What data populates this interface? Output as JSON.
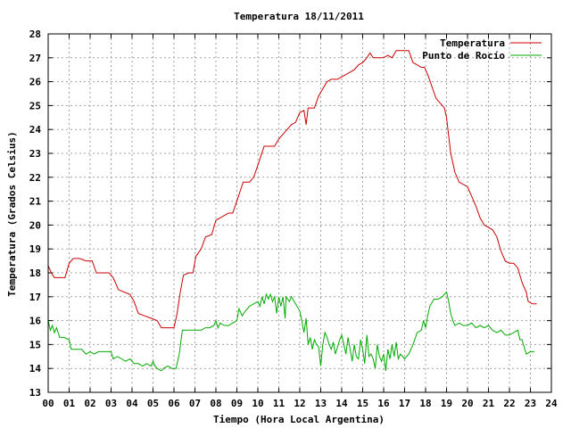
{
  "chart_data": {
    "type": "line",
    "title": "Temperatura 18/11/2011",
    "xlabel": "Tiempo (Hora Local Argentina)",
    "ylabel": "Temperatura (Grados Celsius)",
    "xlim": [
      0,
      24
    ],
    "ylim": [
      13,
      28
    ],
    "x_ticks": [
      "00",
      "01",
      "02",
      "03",
      "04",
      "05",
      "06",
      "07",
      "08",
      "09",
      "10",
      "11",
      "12",
      "13",
      "14",
      "15",
      "16",
      "17",
      "18",
      "19",
      "20",
      "21",
      "22",
      "23",
      "24"
    ],
    "y_ticks": [
      "13",
      "14",
      "15",
      "16",
      "17",
      "18",
      "19",
      "20",
      "21",
      "22",
      "23",
      "24",
      "25",
      "26",
      "27",
      "28"
    ],
    "grid": true,
    "legend_position": "top-right",
    "series": [
      {
        "name": "Temperatura",
        "color": "#cc0000",
        "points": [
          [
            0,
            18.3
          ],
          [
            0.15,
            18.0
          ],
          [
            0.3,
            17.8
          ],
          [
            0.5,
            17.8
          ],
          [
            0.8,
            17.8
          ],
          [
            1.0,
            18.4
          ],
          [
            1.2,
            18.6
          ],
          [
            1.5,
            18.6
          ],
          [
            1.8,
            18.5
          ],
          [
            2.1,
            18.5
          ],
          [
            2.3,
            18.0
          ],
          [
            2.6,
            18.0
          ],
          [
            2.9,
            18.0
          ],
          [
            3.1,
            17.8
          ],
          [
            3.35,
            17.3
          ],
          [
            3.6,
            17.2
          ],
          [
            3.9,
            17.1
          ],
          [
            4.1,
            16.8
          ],
          [
            4.3,
            16.3
          ],
          [
            4.6,
            16.2
          ],
          [
            4.9,
            16.1
          ],
          [
            5.2,
            16.0
          ],
          [
            5.4,
            15.7
          ],
          [
            5.7,
            15.7
          ],
          [
            6.0,
            15.7
          ],
          [
            6.15,
            16.3
          ],
          [
            6.3,
            17.2
          ],
          [
            6.45,
            17.9
          ],
          [
            6.7,
            18.0
          ],
          [
            6.9,
            18.0
          ],
          [
            7.05,
            18.7
          ],
          [
            7.3,
            19.0
          ],
          [
            7.5,
            19.5
          ],
          [
            7.8,
            19.6
          ],
          [
            8.0,
            20.2
          ],
          [
            8.2,
            20.3
          ],
          [
            8.4,
            20.4
          ],
          [
            8.6,
            20.5
          ],
          [
            8.8,
            20.5
          ],
          [
            9.0,
            21.0
          ],
          [
            9.15,
            21.4
          ],
          [
            9.3,
            21.8
          ],
          [
            9.6,
            21.8
          ],
          [
            9.8,
            22.0
          ],
          [
            10.0,
            22.5
          ],
          [
            10.15,
            22.9
          ],
          [
            10.3,
            23.3
          ],
          [
            10.6,
            23.3
          ],
          [
            10.8,
            23.3
          ],
          [
            11.0,
            23.6
          ],
          [
            11.2,
            23.8
          ],
          [
            11.4,
            24.0
          ],
          [
            11.6,
            24.2
          ],
          [
            11.8,
            24.3
          ],
          [
            12.0,
            24.7
          ],
          [
            12.2,
            24.8
          ],
          [
            12.3,
            24.2
          ],
          [
            12.4,
            24.9
          ],
          [
            12.7,
            24.9
          ],
          [
            12.9,
            25.4
          ],
          [
            13.1,
            25.7
          ],
          [
            13.3,
            26.0
          ],
          [
            13.5,
            26.1
          ],
          [
            13.8,
            26.1
          ],
          [
            14.0,
            26.2
          ],
          [
            14.2,
            26.3
          ],
          [
            14.4,
            26.4
          ],
          [
            14.6,
            26.5
          ],
          [
            14.8,
            26.7
          ],
          [
            15.0,
            26.8
          ],
          [
            15.2,
            27.0
          ],
          [
            15.35,
            27.2
          ],
          [
            15.5,
            27.0
          ],
          [
            15.8,
            27.0
          ],
          [
            16.0,
            27.0
          ],
          [
            16.2,
            27.1
          ],
          [
            16.4,
            27.0
          ],
          [
            16.6,
            27.3
          ],
          [
            16.9,
            27.3
          ],
          [
            17.2,
            27.3
          ],
          [
            17.4,
            26.8
          ],
          [
            17.6,
            26.7
          ],
          [
            17.8,
            26.6
          ],
          [
            17.95,
            26.6
          ],
          [
            18.1,
            26.3
          ],
          [
            18.3,
            25.8
          ],
          [
            18.5,
            25.3
          ],
          [
            18.7,
            25.1
          ],
          [
            18.9,
            24.9
          ],
          [
            19.0,
            24.5
          ],
          [
            19.2,
            23.0
          ],
          [
            19.4,
            22.2
          ],
          [
            19.6,
            21.8
          ],
          [
            19.8,
            21.7
          ],
          [
            20.0,
            21.6
          ],
          [
            20.2,
            21.2
          ],
          [
            20.4,
            20.8
          ],
          [
            20.6,
            20.3
          ],
          [
            20.8,
            20.0
          ],
          [
            21.0,
            19.9
          ],
          [
            21.2,
            19.8
          ],
          [
            21.4,
            19.5
          ],
          [
            21.6,
            18.9
          ],
          [
            21.8,
            18.5
          ],
          [
            22.0,
            18.4
          ],
          [
            22.2,
            18.4
          ],
          [
            22.4,
            18.2
          ],
          [
            22.6,
            17.6
          ],
          [
            22.8,
            17.2
          ],
          [
            22.9,
            16.8
          ],
          [
            23.1,
            16.7
          ],
          [
            23.3,
            16.7
          ]
        ]
      },
      {
        "name": "Punto de Rocío",
        "color": "#00aa00",
        "points": [
          [
            0,
            16.0
          ],
          [
            0.1,
            15.6
          ],
          [
            0.2,
            15.8
          ],
          [
            0.3,
            15.5
          ],
          [
            0.4,
            15.7
          ],
          [
            0.55,
            15.3
          ],
          [
            0.75,
            15.3
          ],
          [
            1.0,
            15.2
          ],
          [
            1.1,
            14.8
          ],
          [
            1.3,
            14.8
          ],
          [
            1.6,
            14.8
          ],
          [
            1.8,
            14.6
          ],
          [
            2.0,
            14.7
          ],
          [
            2.2,
            14.6
          ],
          [
            2.4,
            14.7
          ],
          [
            2.6,
            14.7
          ],
          [
            2.8,
            14.7
          ],
          [
            3.0,
            14.7
          ],
          [
            3.1,
            14.4
          ],
          [
            3.3,
            14.5
          ],
          [
            3.5,
            14.4
          ],
          [
            3.7,
            14.3
          ],
          [
            3.9,
            14.4
          ],
          [
            4.1,
            14.2
          ],
          [
            4.3,
            14.2
          ],
          [
            4.5,
            14.1
          ],
          [
            4.7,
            14.2
          ],
          [
            4.9,
            14.1
          ],
          [
            5.0,
            14.3
          ],
          [
            5.1,
            14.1
          ],
          [
            5.2,
            14.0
          ],
          [
            5.4,
            13.9
          ],
          [
            5.5,
            14.0
          ],
          [
            5.7,
            14.1
          ],
          [
            5.9,
            14.0
          ],
          [
            6.1,
            14.0
          ],
          [
            6.25,
            14.6
          ],
          [
            6.4,
            15.6
          ],
          [
            6.7,
            15.6
          ],
          [
            7.0,
            15.6
          ],
          [
            7.3,
            15.6
          ],
          [
            7.5,
            15.7
          ],
          [
            7.7,
            15.7
          ],
          [
            7.9,
            15.8
          ],
          [
            8.0,
            16.0
          ],
          [
            8.1,
            15.7
          ],
          [
            8.2,
            15.9
          ],
          [
            8.4,
            15.8
          ],
          [
            8.6,
            15.8
          ],
          [
            8.8,
            15.9
          ],
          [
            9.0,
            16.0
          ],
          [
            9.1,
            16.5
          ],
          [
            9.25,
            16.2
          ],
          [
            9.4,
            16.4
          ],
          [
            9.6,
            16.6
          ],
          [
            9.8,
            16.7
          ],
          [
            10.0,
            16.8
          ],
          [
            10.1,
            16.6
          ],
          [
            10.2,
            17.0
          ],
          [
            10.3,
            16.7
          ],
          [
            10.4,
            17.1
          ],
          [
            10.5,
            16.9
          ],
          [
            10.6,
            17.1
          ],
          [
            10.7,
            16.8
          ],
          [
            10.8,
            17.0
          ],
          [
            10.9,
            16.3
          ],
          [
            11.0,
            17.0
          ],
          [
            11.1,
            16.6
          ],
          [
            11.2,
            17.0
          ],
          [
            11.3,
            16.1
          ],
          [
            11.35,
            17.0
          ],
          [
            11.5,
            16.8
          ],
          [
            11.6,
            17.0
          ],
          [
            11.8,
            16.7
          ],
          [
            12.0,
            16.4
          ],
          [
            12.1,
            16.0
          ],
          [
            12.2,
            15.5
          ],
          [
            12.3,
            16.1
          ],
          [
            12.4,
            15.0
          ],
          [
            12.5,
            15.3
          ],
          [
            12.6,
            14.8
          ],
          [
            12.7,
            15.2
          ],
          [
            12.8,
            15.0
          ],
          [
            12.9,
            14.9
          ],
          [
            13.0,
            14.1
          ],
          [
            13.1,
            15.0
          ],
          [
            13.2,
            15.5
          ],
          [
            13.3,
            15.3
          ],
          [
            13.4,
            15.0
          ],
          [
            13.5,
            14.8
          ],
          [
            13.6,
            15.1
          ],
          [
            13.7,
            14.6
          ],
          [
            13.8,
            14.9
          ],
          [
            13.9,
            15.2
          ],
          [
            14.0,
            15.4
          ],
          [
            14.1,
            15.0
          ],
          [
            14.2,
            14.6
          ],
          [
            14.3,
            15.3
          ],
          [
            14.4,
            14.8
          ],
          [
            14.5,
            14.3
          ],
          [
            14.6,
            15.0
          ],
          [
            14.7,
            14.5
          ],
          [
            14.8,
            14.4
          ],
          [
            14.9,
            15.2
          ],
          [
            15.0,
            14.8
          ],
          [
            15.1,
            14.2
          ],
          [
            15.2,
            15.4
          ],
          [
            15.3,
            14.5
          ],
          [
            15.4,
            14.6
          ],
          [
            15.5,
            14.4
          ],
          [
            15.6,
            14.0
          ],
          [
            15.7,
            15.0
          ],
          [
            15.8,
            14.5
          ],
          [
            15.9,
            14.3
          ],
          [
            16.0,
            14.6
          ],
          [
            16.1,
            13.9
          ],
          [
            16.2,
            14.8
          ],
          [
            16.3,
            14.4
          ],
          [
            16.4,
            15.0
          ],
          [
            16.5,
            14.5
          ],
          [
            16.6,
            15.1
          ],
          [
            16.7,
            14.4
          ],
          [
            16.8,
            14.6
          ],
          [
            17.0,
            14.4
          ],
          [
            17.2,
            14.6
          ],
          [
            17.4,
            15.0
          ],
          [
            17.6,
            15.5
          ],
          [
            17.8,
            15.6
          ],
          [
            17.9,
            16.0
          ],
          [
            18.0,
            15.7
          ],
          [
            18.1,
            16.2
          ],
          [
            18.2,
            16.6
          ],
          [
            18.4,
            16.9
          ],
          [
            18.6,
            16.9
          ],
          [
            18.8,
            17.0
          ],
          [
            19.0,
            17.2
          ],
          [
            19.1,
            16.8
          ],
          [
            19.2,
            16.3
          ],
          [
            19.3,
            16.0
          ],
          [
            19.4,
            15.8
          ],
          [
            19.6,
            15.9
          ],
          [
            19.8,
            15.8
          ],
          [
            20.0,
            15.8
          ],
          [
            20.2,
            15.9
          ],
          [
            20.4,
            15.7
          ],
          [
            20.6,
            15.8
          ],
          [
            20.8,
            15.7
          ],
          [
            21.0,
            15.8
          ],
          [
            21.2,
            15.6
          ],
          [
            21.4,
            15.5
          ],
          [
            21.6,
            15.6
          ],
          [
            21.8,
            15.4
          ],
          [
            22.0,
            15.4
          ],
          [
            22.2,
            15.5
          ],
          [
            22.4,
            15.6
          ],
          [
            22.5,
            15.2
          ],
          [
            22.6,
            15.2
          ],
          [
            22.8,
            14.6
          ],
          [
            23.0,
            14.7
          ],
          [
            23.2,
            14.7
          ]
        ]
      }
    ]
  }
}
